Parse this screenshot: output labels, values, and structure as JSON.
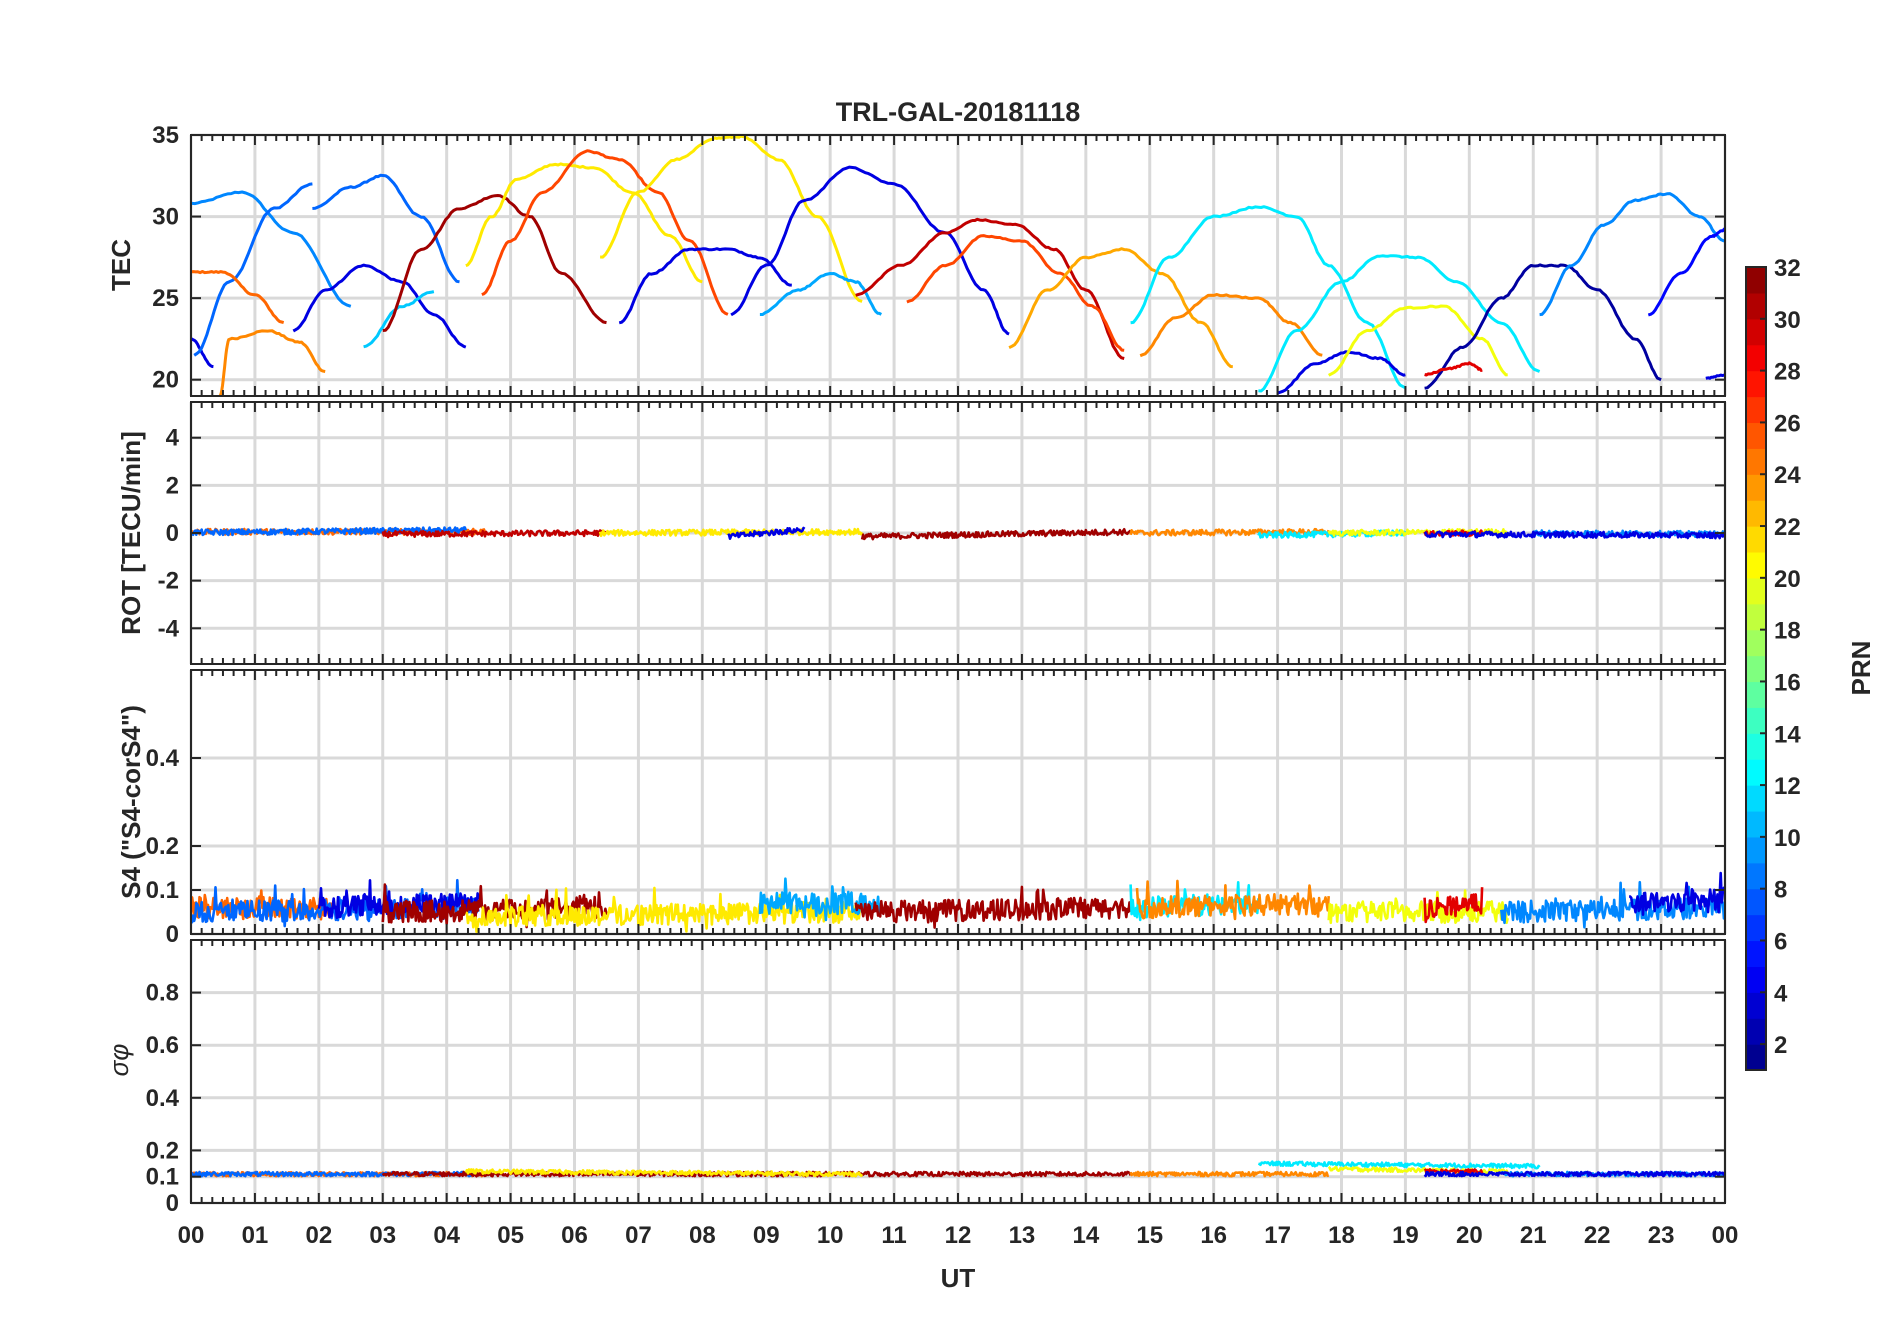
{
  "chart_data": {
    "type": "line",
    "title": "TRL-GAL-20181118",
    "xlabel": "UT",
    "xlim": [
      0,
      24
    ],
    "xticks": [
      0,
      1,
      2,
      3,
      4,
      5,
      6,
      7,
      8,
      9,
      10,
      11,
      12,
      13,
      14,
      15,
      16,
      17,
      18,
      19,
      20,
      21,
      22,
      23,
      24
    ],
    "xtick_labels": [
      "00",
      "01",
      "02",
      "03",
      "04",
      "05",
      "06",
      "07",
      "08",
      "09",
      "10",
      "11",
      "12",
      "13",
      "14",
      "15",
      "16",
      "17",
      "18",
      "19",
      "20",
      "21",
      "22",
      "23",
      "00"
    ],
    "colorbar": {
      "label": "PRN",
      "range": [
        1,
        32
      ],
      "ticks": [
        2,
        4,
        6,
        8,
        10,
        12,
        14,
        16,
        18,
        20,
        22,
        24,
        26,
        28,
        30,
        32
      ],
      "tick_labels": [
        "2",
        "4",
        "6",
        "8",
        "10",
        "12",
        "14",
        "16",
        "18",
        "20",
        "22",
        "24",
        "26",
        "28",
        "30",
        "32"
      ],
      "colormap": "jet",
      "colors": [
        "#00007f",
        "#0000ff",
        "#007fff",
        "#00ffff",
        "#7fff7f",
        "#ffff00",
        "#ff7f00",
        "#ff0000",
        "#7f0000"
      ]
    },
    "panels": [
      {
        "name": "tec",
        "ylabel": "TEC",
        "ylim": [
          19,
          35
        ],
        "yticks": [
          20,
          25,
          30,
          35
        ],
        "ytick_labels": [
          "20",
          "25",
          "30",
          "35"
        ],
        "series": [
          {
            "prn": 9,
            "x": [
              0.0,
              0.8,
              1.6,
              2.5
            ],
            "y": [
              30.8,
              31.5,
              29.0,
              24.5
            ]
          },
          {
            "prn": 4,
            "x": [
              0.0,
              0.35
            ],
            "y": [
              22.5,
              20.8
            ]
          },
          {
            "prn": 8,
            "x": [
              0.05,
              0.6,
              1.3,
              1.9
            ],
            "y": [
              21.5,
              26.0,
              30.5,
              32.0
            ]
          },
          {
            "prn": 25,
            "x": [
              0.0,
              0.5,
              1.0,
              1.45
            ],
            "y": [
              26.6,
              26.6,
              25.2,
              23.5
            ]
          },
          {
            "prn": 24,
            "x": [
              0.45,
              0.6,
              1.2,
              1.7,
              2.1
            ],
            "y": [
              19.0,
              22.5,
              23.0,
              22.3,
              20.5
            ]
          },
          {
            "prn": 8,
            "x": [
              1.9,
              2.5,
              3.0,
              3.6,
              4.2
            ],
            "y": [
              30.5,
              31.8,
              32.5,
              30.0,
              26.0
            ]
          },
          {
            "prn": 4,
            "x": [
              1.6,
              2.1,
              2.7,
              3.3,
              3.8,
              4.3
            ],
            "y": [
              23.0,
              25.5,
              27.0,
              26.0,
              24.0,
              22.0
            ]
          },
          {
            "prn": 11,
            "x": [
              2.7,
              3.3,
              3.8
            ],
            "y": [
              22.0,
              24.5,
              25.4
            ]
          },
          {
            "prn": 31,
            "x": [
              3.0,
              3.6,
              4.2,
              4.8,
              5.3,
              5.8,
              6.5
            ],
            "y": [
              23.0,
              28.0,
              30.5,
              31.3,
              30.0,
              26.5,
              23.5
            ]
          },
          {
            "prn": 21,
            "x": [
              4.3,
              4.7,
              5.1,
              5.7,
              6.3,
              6.9,
              7.5,
              8.0
            ],
            "y": [
              27.0,
              30.0,
              32.3,
              33.2,
              33.0,
              31.5,
              28.8,
              26.0
            ]
          },
          {
            "prn": 26,
            "x": [
              4.55,
              5.0,
              5.5,
              6.2,
              6.7,
              7.3,
              7.8,
              8.4
            ],
            "y": [
              25.2,
              28.5,
              31.5,
              34.0,
              33.5,
              31.5,
              28.5,
              24.0
            ]
          },
          {
            "prn": 21,
            "x": [
              6.4,
              7.0,
              7.6,
              8.2,
              8.6,
              9.2,
              9.8,
              10.5
            ],
            "y": [
              27.5,
              31.5,
              33.5,
              34.8,
              34.9,
              33.5,
              30.0,
              24.8
            ]
          },
          {
            "prn": 4,
            "x": [
              6.7,
              7.2,
              7.8,
              8.4,
              8.9,
              9.4
            ],
            "y": [
              23.5,
              26.5,
              28.0,
              28.0,
              27.5,
              25.8
            ]
          },
          {
            "prn": 4,
            "x": [
              8.45,
              9.0,
              9.6,
              10.3,
              11.0,
              11.8,
              12.4,
              12.8
            ],
            "y": [
              24.0,
              27.0,
              31.0,
              33.0,
              32.0,
              29.0,
              25.5,
              22.8
            ]
          },
          {
            "prn": 10,
            "x": [
              8.9,
              9.5,
              10.0,
              10.4,
              10.8
            ],
            "y": [
              24.0,
              25.5,
              26.5,
              26.0,
              24.0
            ]
          },
          {
            "prn": 30,
            "x": [
              10.4,
              11.1,
              11.8,
              12.3,
              12.9,
              13.5,
              14.0,
              14.6
            ],
            "y": [
              25.2,
              27.0,
              29.0,
              29.8,
              29.5,
              28.0,
              25.5,
              21.3
            ]
          },
          {
            "prn": 26,
            "x": [
              11.2,
              11.8,
              12.4,
              13.0,
              13.6,
              14.1,
              14.6
            ],
            "y": [
              24.8,
              27.0,
              28.8,
              28.5,
              26.5,
              24.5,
              21.8
            ]
          },
          {
            "prn": 23,
            "x": [
              12.8,
              13.4,
              14.0,
              14.6,
              15.2,
              15.8,
              16.3
            ],
            "y": [
              22.0,
              25.5,
              27.5,
              28.0,
              26.5,
              23.5,
              20.8
            ]
          },
          {
            "prn": 12,
            "x": [
              14.7,
              15.3,
              16.0,
              16.7,
              17.3,
              17.8,
              18.4,
              19.0
            ],
            "y": [
              23.5,
              27.5,
              30.0,
              30.6,
              30.0,
              27.0,
              23.5,
              19.5
            ]
          },
          {
            "prn": 24,
            "x": [
              14.85,
              15.4,
              16.0,
              16.7,
              17.2,
              17.7
            ],
            "y": [
              21.5,
              23.8,
              25.2,
              25.0,
              23.5,
              21.5
            ]
          },
          {
            "prn": 12,
            "x": [
              16.7,
              17.3,
              18.0,
              18.6,
              19.2,
              19.8,
              20.5,
              21.1
            ],
            "y": [
              19.3,
              23.0,
              26.0,
              27.6,
              27.5,
              26.0,
              23.5,
              20.5
            ]
          },
          {
            "prn": 4,
            "x": [
              17.0,
              17.6,
              18.1,
              18.6,
              19.0
            ],
            "y": [
              19.2,
              21.0,
              21.7,
              21.3,
              20.3
            ]
          },
          {
            "prn": 20,
            "x": [
              17.8,
              18.4,
              19.0,
              19.6,
              20.2,
              20.6
            ],
            "y": [
              20.3,
              23.0,
              24.4,
              24.5,
              22.5,
              20.3
            ]
          },
          {
            "prn": 2,
            "x": [
              19.3,
              19.9,
              20.5,
              21.0,
              21.5,
              22.0,
              22.6,
              23.0
            ],
            "y": [
              19.5,
              22.0,
              25.0,
              27.0,
              27.0,
              25.5,
              22.5,
              20.0
            ]
          },
          {
            "prn": 29,
            "x": [
              19.3,
              19.7,
              20.0,
              20.2
            ],
            "y": [
              20.3,
              20.7,
              21.0,
              20.6
            ]
          },
          {
            "prn": 9,
            "x": [
              21.1,
              21.6,
              22.1,
              22.6,
              23.1,
              23.6,
              24.0
            ],
            "y": [
              24.0,
              27.0,
              29.5,
              31.0,
              31.4,
              30.0,
              28.5
            ]
          },
          {
            "prn": 5,
            "x": [
              22.8,
              23.3,
              23.8,
              24.0
            ],
            "y": [
              24.0,
              26.5,
              28.8,
              29.2
            ]
          },
          {
            "prn": 4,
            "x": [
              23.7,
              24.0
            ],
            "y": [
              20.1,
              20.3
            ]
          }
        ]
      },
      {
        "name": "rot",
        "ylabel": "ROT [TECU/min]",
        "ylim": [
          -5.5,
          5.5
        ],
        "yticks": [
          -4,
          -2,
          0,
          2,
          4
        ],
        "ytick_labels": [
          "-4",
          "-2",
          "0",
          "2",
          "4"
        ],
        "series": [
          {
            "prn": 25,
            "x": [
              0.0,
              4.6
            ],
            "y": [
              0.05,
              0.05
            ]
          },
          {
            "prn": 8,
            "x": [
              0.0,
              4.3
            ],
            "y": [
              0.02,
              0.12
            ]
          },
          {
            "prn": 30,
            "x": [
              3.0,
              6.5
            ],
            "y": [
              -0.05,
              0.0
            ]
          },
          {
            "prn": 21,
            "x": [
              6.4,
              10.5
            ],
            "y": [
              0.0,
              0.05
            ]
          },
          {
            "prn": 4,
            "x": [
              8.4,
              9.6
            ],
            "y": [
              -0.15,
              0.15
            ]
          },
          {
            "prn": 31,
            "x": [
              10.5,
              14.7
            ],
            "y": [
              -0.15,
              0.05
            ]
          },
          {
            "prn": 24,
            "x": [
              14.7,
              17.8
            ],
            "y": [
              0.0,
              0.05
            ]
          },
          {
            "prn": 12,
            "x": [
              16.7,
              19.0
            ],
            "y": [
              -0.1,
              0.0
            ]
          },
          {
            "prn": 20,
            "x": [
              17.8,
              20.6
            ],
            "y": [
              0.0,
              0.05
            ]
          },
          {
            "prn": 29,
            "x": [
              19.3,
              20.2
            ],
            "y": [
              -0.05,
              0.0
            ]
          },
          {
            "prn": 9,
            "x": [
              21.0,
              24.0
            ],
            "y": [
              0.0,
              -0.05
            ]
          },
          {
            "prn": 4,
            "x": [
              19.3,
              24.0
            ],
            "y": [
              -0.05,
              -0.1
            ]
          }
        ]
      },
      {
        "name": "s4",
        "ylabel": "S4 (\"S4-corS4\")",
        "ylim": [
          0,
          0.6
        ],
        "yticks": [
          0,
          0.1,
          0.2,
          0.4
        ],
        "ytick_labels": [
          "0",
          "0.1",
          "0.2",
          "0.4"
        ],
        "series": [
          {
            "prn": 25,
            "x": [
              0.0,
              2.2
            ],
            "y": [
              0.05,
              0.05
            ]
          },
          {
            "prn": 8,
            "x": [
              0.0,
              4.5
            ],
            "y": [
              0.04,
              0.05
            ]
          },
          {
            "prn": 4,
            "x": [
              2.0,
              4.5
            ],
            "y": [
              0.05,
              0.06
            ]
          },
          {
            "prn": 31,
            "x": [
              3.0,
              6.5
            ],
            "y": [
              0.04,
              0.05
            ]
          },
          {
            "prn": 21,
            "x": [
              4.3,
              10.5
            ],
            "y": [
              0.03,
              0.04
            ]
          },
          {
            "prn": 10,
            "x": [
              8.9,
              10.8
            ],
            "y": [
              0.06,
              0.06
            ]
          },
          {
            "prn": 31,
            "x": [
              10.4,
              14.7
            ],
            "y": [
              0.04,
              0.05
            ]
          },
          {
            "prn": 12,
            "x": [
              14.7,
              16.7
            ],
            "y": [
              0.05,
              0.06
            ]
          },
          {
            "prn": 24,
            "x": [
              14.8,
              17.8
            ],
            "y": [
              0.05,
              0.06
            ]
          },
          {
            "prn": 20,
            "x": [
              17.8,
              20.6
            ],
            "y": [
              0.04,
              0.04
            ]
          },
          {
            "prn": 29,
            "x": [
              19.3,
              20.2
            ],
            "y": [
              0.05,
              0.06
            ]
          },
          {
            "prn": 9,
            "x": [
              20.5,
              24.0
            ],
            "y": [
              0.04,
              0.05
            ]
          },
          {
            "prn": 4,
            "x": [
              22.5,
              24.0
            ],
            "y": [
              0.06,
              0.07
            ]
          }
        ]
      },
      {
        "name": "sigma_phi",
        "ylabel": "σφ",
        "ylim": [
          0,
          1.0
        ],
        "yticks": [
          0,
          0.1,
          0.2,
          0.4,
          0.6,
          0.8
        ],
        "ytick_labels": [
          "0",
          "0.1",
          "0.2",
          "0.4",
          "0.6",
          "0.8"
        ],
        "series": [
          {
            "prn": 25,
            "x": [
              0.0,
              4.6
            ],
            "y": [
              0.11,
              0.11
            ]
          },
          {
            "prn": 8,
            "x": [
              0.0,
              4.5
            ],
            "y": [
              0.11,
              0.11
            ]
          },
          {
            "prn": 31,
            "x": [
              3.0,
              14.7
            ],
            "y": [
              0.11,
              0.11
            ]
          },
          {
            "prn": 21,
            "x": [
              4.3,
              10.5
            ],
            "y": [
              0.12,
              0.11
            ]
          },
          {
            "prn": 24,
            "x": [
              14.7,
              17.8
            ],
            "y": [
              0.11,
              0.11
            ]
          },
          {
            "prn": 12,
            "x": [
              16.7,
              21.1
            ],
            "y": [
              0.15,
              0.14
            ]
          },
          {
            "prn": 20,
            "x": [
              17.8,
              20.6
            ],
            "y": [
              0.13,
              0.12
            ]
          },
          {
            "prn": 29,
            "x": [
              19.3,
              20.2
            ],
            "y": [
              0.12,
              0.12
            ]
          },
          {
            "prn": 9,
            "x": [
              20.5,
              24.0
            ],
            "y": [
              0.11,
              0.11
            ]
          },
          {
            "prn": 4,
            "x": [
              19.3,
              24.0
            ],
            "y": [
              0.11,
              0.11
            ]
          }
        ]
      }
    ]
  }
}
